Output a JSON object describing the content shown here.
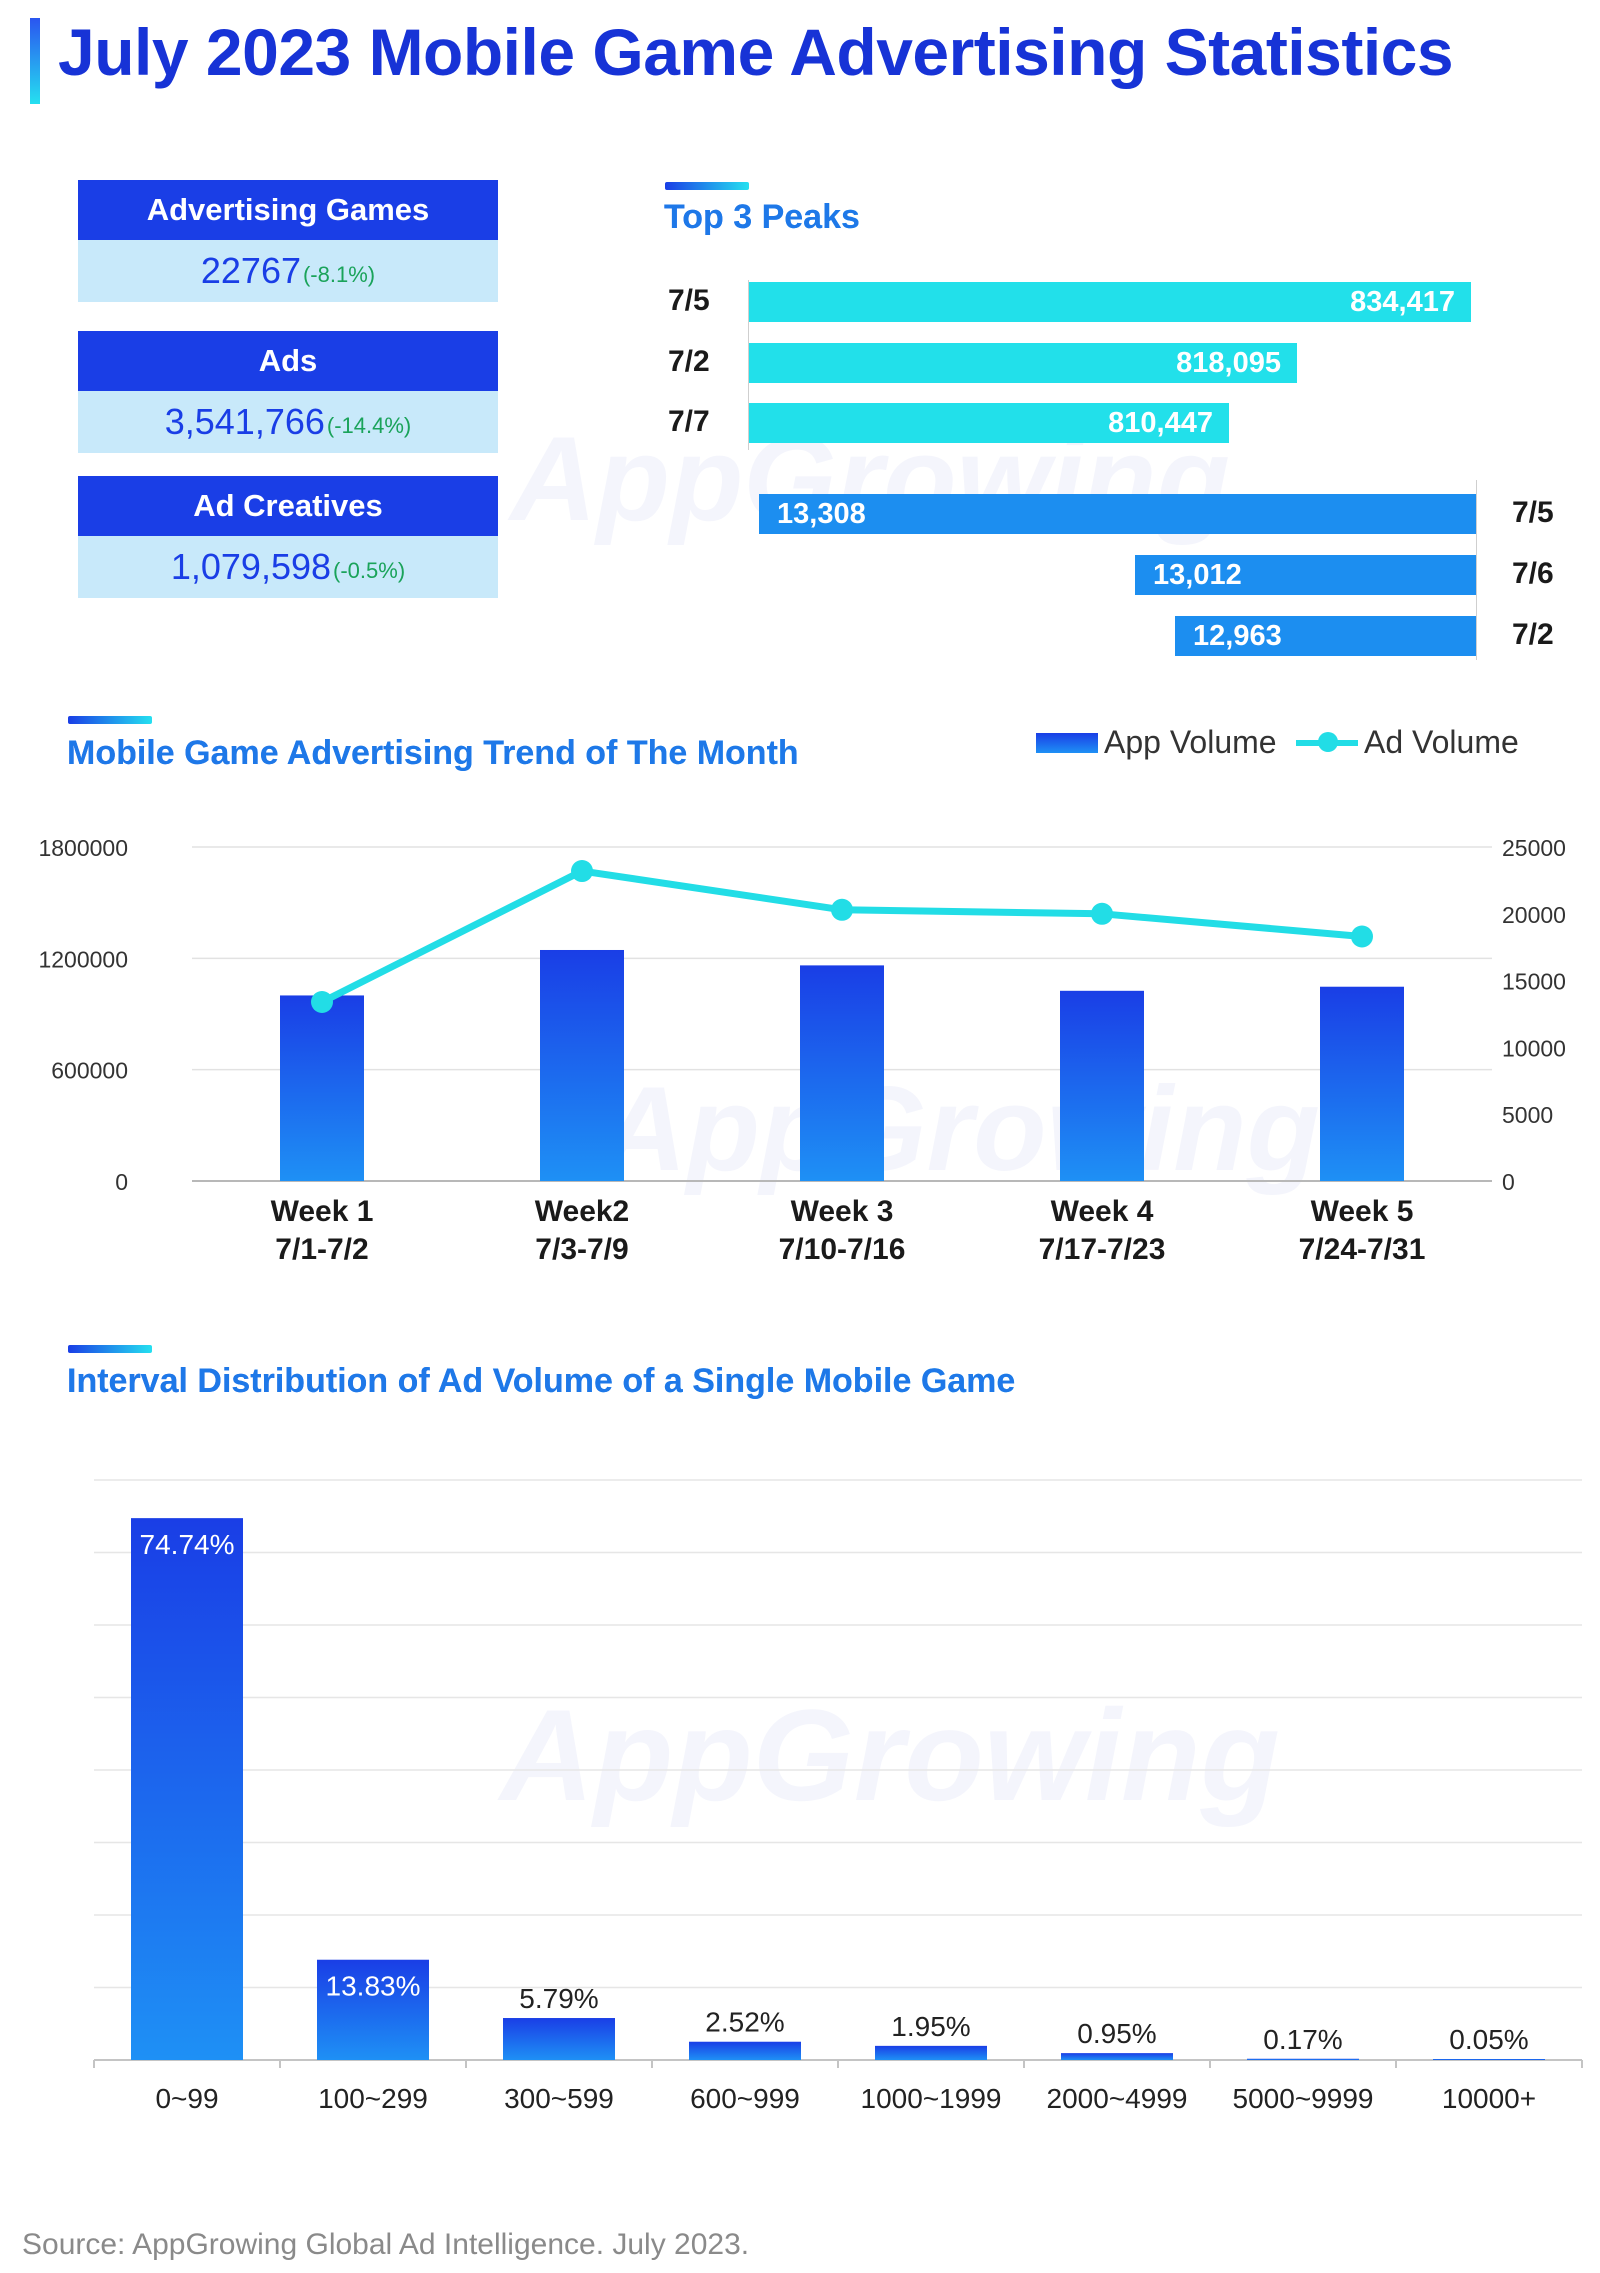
{
  "page": {
    "title": "July 2023 Mobile Game Advertising Statistics",
    "source": "Source: AppGrowing Global Ad Intelligence. July 2023.",
    "watermark": "AppGrowing"
  },
  "stats": [
    {
      "label": "Advertising Games",
      "value": "22767",
      "change": "(-8.1%)"
    },
    {
      "label": "Ads",
      "value": "3,541,766",
      "change": "(-14.4%)"
    },
    {
      "label": "Ad Creatives",
      "value": "1,079,598",
      "change": "(-0.5%)"
    }
  ],
  "peaks": {
    "title": "Top 3 Peaks",
    "ads": [
      {
        "date": "7/5",
        "value": 834417,
        "label": "834,417"
      },
      {
        "date": "7/2",
        "value": 818095,
        "label": "818,095"
      },
      {
        "date": "7/7",
        "value": 810447,
        "label": "810,447"
      }
    ],
    "apps": [
      {
        "date": "7/5",
        "value": 13308,
        "label": "13,308"
      },
      {
        "date": "7/6",
        "value": 13012,
        "label": "13,012"
      },
      {
        "date": "7/2",
        "value": 12963,
        "label": "12,963"
      }
    ],
    "colors": {
      "ads": "#22e0ea",
      "apps": "#1c8ef0"
    }
  },
  "trend": {
    "title": "Mobile Game Advertising Trend of The Month",
    "legend": {
      "bars": "App Volume",
      "line": "Ad Volume"
    }
  },
  "distribution": {
    "title": "Interval Distribution of Ad Volume of a Single Mobile Game"
  },
  "chart_data": [
    {
      "type": "bar",
      "title": "Top 3 Peaks",
      "series": [
        {
          "categories": [
            "7/5",
            "7/2",
            "7/7"
          ],
          "values": [
            834417,
            818095,
            810447
          ]
        },
        {
          "categories": [
            "7/5",
            "7/6",
            "7/2"
          ],
          "values": [
            13308,
            13012,
            12963
          ]
        }
      ]
    },
    {
      "type": "bar",
      "title": "Mobile Game Advertising Trend of The Month",
      "categories": [
        {
          "week": "Week 1",
          "range": "7/1-7/2"
        },
        {
          "week": "Week2",
          "range": "7/3-7/9"
        },
        {
          "week": "Week 3",
          "range": "7/10-7/16"
        },
        {
          "week": "Week 4",
          "range": "7/17-7/23"
        },
        {
          "week": "Week 5",
          "range": "7/24-7/31"
        }
      ],
      "series": [
        {
          "name": "App Volume",
          "type": "bar",
          "axis": "left",
          "values": [
            1000000,
            1245000,
            1162000,
            1025000,
            1047000
          ]
        },
        {
          "name": "Ad Volume",
          "type": "line",
          "axis": "right",
          "values": [
            13400,
            23200,
            20300,
            20000,
            18300
          ]
        }
      ],
      "y_left": {
        "ticks": [
          0,
          600000,
          1200000,
          1800000
        ],
        "tick_labels": [
          "0",
          "600000",
          "1200000",
          "1800000"
        ],
        "ylim": [
          0,
          1800000
        ]
      },
      "y_right": {
        "ticks": [
          0,
          5000,
          10000,
          15000,
          20000,
          25000
        ],
        "tick_labels": [
          "0",
          "5000",
          "10000",
          "15000",
          "20000",
          "25000"
        ],
        "ylim": [
          0,
          25000
        ]
      },
      "grid": true,
      "legend_position": "top-right",
      "colors": {
        "bar_top": "#1a3ee6",
        "bar_bottom": "#1e90f5",
        "line": "#22dde6"
      }
    },
    {
      "type": "bar",
      "title": "Interval Distribution of Ad Volume of a Single Mobile Game",
      "categories": [
        "0~99",
        "100~299",
        "300~599",
        "600~999",
        "1000~1999",
        "2000~4999",
        "5000~9999",
        "10000+"
      ],
      "values": [
        74.74,
        13.83,
        5.79,
        2.52,
        1.95,
        0.95,
        0.17,
        0.05
      ],
      "labels": [
        "74.74%",
        "13.83%",
        "5.79%",
        "2.52%",
        "1.95%",
        "0.95%",
        "0.17%",
        "0.05%"
      ],
      "unit": "%",
      "ylim": [
        0,
        80
      ],
      "grid": true,
      "colors": {
        "bar_top": "#1a3ee6",
        "bar_bottom": "#1e90f5"
      }
    }
  ]
}
